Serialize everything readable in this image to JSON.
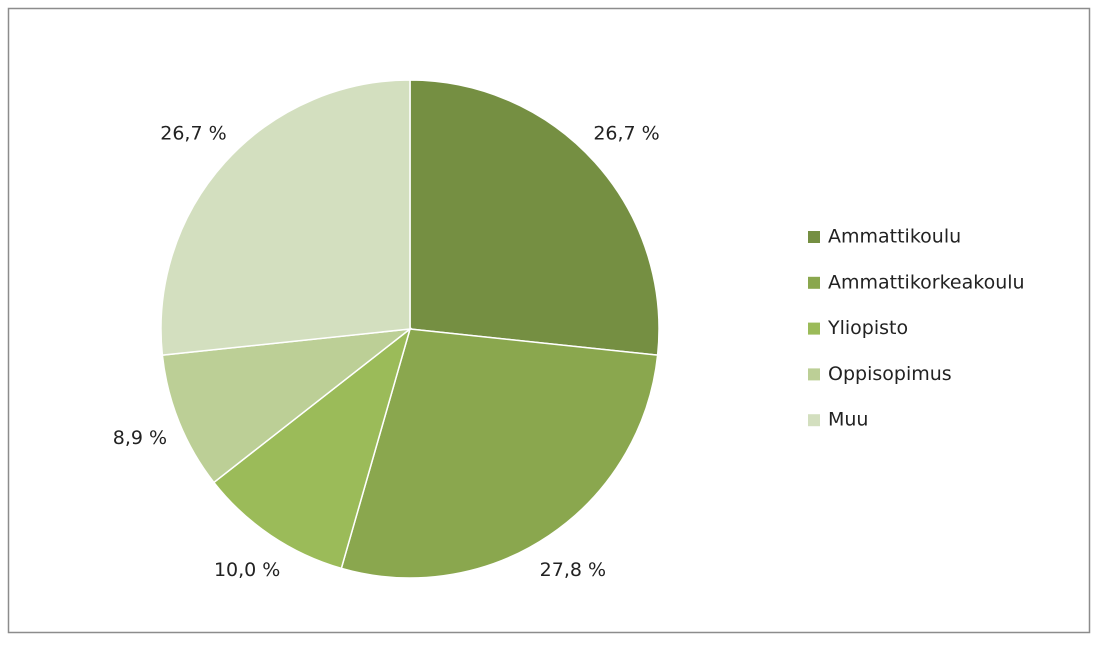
{
  "chart_data": {
    "type": "pie",
    "categories": [
      "Ammattikoulu",
      "Ammattikorkeakoulu",
      "Yliopisto",
      "Oppisopimus",
      "Muu"
    ],
    "values": [
      26.7,
      27.8,
      10.0,
      8.9,
      26.7
    ],
    "value_labels": [
      "26,7 %",
      "27,8 %",
      "10,0 %",
      "8,9 %",
      "26,7 %"
    ],
    "colors": [
      "#758f42",
      "#8aa74e",
      "#9bbb59",
      "#bccf96",
      "#d3dfbf"
    ],
    "legend": "right"
  }
}
